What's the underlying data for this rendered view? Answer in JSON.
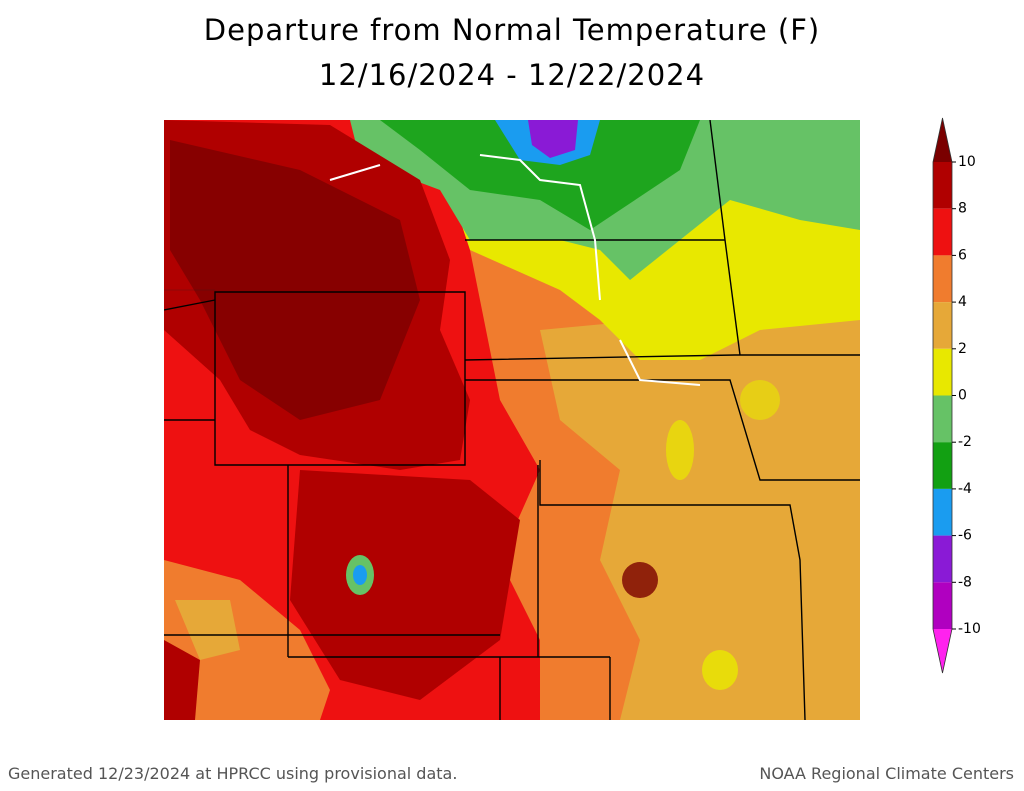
{
  "title": [
    "Departure from Normal Temperature (F)",
    "12/16/2024 - 12/22/2024"
  ],
  "colorbar": {
    "ticks": [
      10,
      8,
      6,
      4,
      2,
      0,
      -2,
      -4,
      -6,
      -8,
      -10
    ],
    "colors": [
      "#7a0000",
      "#b00000",
      "#ee1111",
      "#f07c2e",
      "#e6a838",
      "#e8e800",
      "#66c266",
      "#12a012",
      "#1a9cf0",
      "#8a1ad6",
      "#b000c0",
      "#ff22ee"
    ]
  },
  "footer": {
    "left": "Generated 12/23/2024 at HPRCC using provisional data.",
    "right": "NOAA Regional Climate Centers"
  }
}
